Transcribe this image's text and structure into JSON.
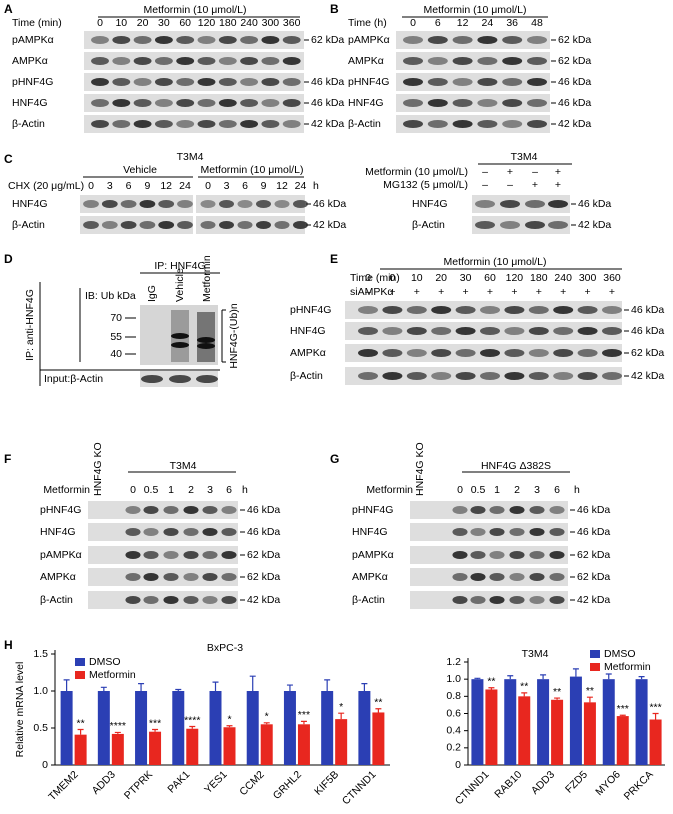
{
  "A": {
    "letter": "A",
    "treatment": "Metformin (10 μmol/L)",
    "lane_title": "Time (min)",
    "lanes": [
      "0",
      "10",
      "20",
      "30",
      "60",
      "120",
      "180",
      "240",
      "300",
      "360"
    ],
    "rows": [
      {
        "label": "pAMPKα",
        "size": "62 kDa"
      },
      {
        "label": "AMPKα"
      },
      {
        "label": "pHNF4G",
        "size": "46 kDa"
      },
      {
        "label": "HNF4G",
        "size": "46 kDa"
      },
      {
        "label": "β-Actin",
        "size": "42 kDa"
      }
    ]
  },
  "B": {
    "letter": "B",
    "treatment": "Metformin (10 μmol/L)",
    "lane_title": "Time (h)",
    "lanes": [
      "0",
      "6",
      "12",
      "24",
      "36",
      "48"
    ],
    "rows": [
      {
        "label": "pAMPKα",
        "size": "62 kDa"
      },
      {
        "label": "AMPKα",
        "size": "62 kDa"
      },
      {
        "label": "pHNF4G",
        "size": "46 kDa"
      },
      {
        "label": "HNF4G",
        "size": "46 kDa"
      },
      {
        "label": "β-Actin",
        "size": "42 kDa"
      }
    ]
  },
  "C": {
    "letter": "C",
    "cell_line": "T3M4",
    "groups": [
      "Vehicle",
      "Metformin (10 μmol/L)"
    ],
    "lane_title": "CHX (20 μg/mL)",
    "lanes": [
      "0",
      "3",
      "6",
      "9",
      "12",
      "24"
    ],
    "unit": "h",
    "rows": [
      {
        "label": "HNF4G",
        "size": "46 kDa"
      },
      {
        "label": "β-Actin",
        "size": "42 kDa"
      }
    ]
  },
  "C2": {
    "cell_line": "T3M4",
    "conditions": [
      {
        "label": "Metformin (10 μmol/L)",
        "signs": [
          "–",
          "+",
          "–",
          "+"
        ]
      },
      {
        "label": "MG132 (5 μmol/L)",
        "signs": [
          "–",
          "–",
          "+",
          "+"
        ]
      }
    ],
    "rows": [
      {
        "label": "HNF4G",
        "size": "46 kDa"
      },
      {
        "label": "β-Actin",
        "size": "42 kDa"
      }
    ]
  },
  "D": {
    "letter": "D",
    "ip": "IP: HNF4G",
    "lanes": [
      "IgG",
      "Vehicle",
      "Metformin"
    ],
    "side_label": "IP: anti-HNF4G",
    "ib": "IB: Ub kDa",
    "markers": [
      "70",
      "55",
      "40"
    ],
    "bracket": "HNF4G-(Ub)n",
    "input": "Input:β-Actin"
  },
  "E": {
    "letter": "E",
    "treatment": "Metformin (10 μmol/L)",
    "lane_title": "Time (min)",
    "lanes": [
      "0",
      "0",
      "10",
      "20",
      "30",
      "60",
      "120",
      "180",
      "240",
      "300",
      "360"
    ],
    "sirna": {
      "label": "siAMPKα",
      "signs": [
        "–",
        "+",
        "+",
        "+",
        "+",
        "+",
        "+",
        "+",
        "+",
        "+",
        "+"
      ]
    },
    "rows": [
      {
        "label": "pHNF4G",
        "size": "46 kDa"
      },
      {
        "label": "HNF4G",
        "size": "46 kDa"
      },
      {
        "label": "AMPKα",
        "size": "62 kDa"
      },
      {
        "label": "β-Actin",
        "size": "42 kDa"
      }
    ]
  },
  "F": {
    "letter": "F",
    "cell_line": "T3M4",
    "ko": "HNF4G KO",
    "treatment": "Metformin",
    "lanes": [
      "0",
      "0.5",
      "1",
      "2",
      "3",
      "6"
    ],
    "unit": "h",
    "rows": [
      {
        "label": "pHNF4G",
        "size": "46 kDa"
      },
      {
        "label": "HNF4G",
        "size": "46 kDa"
      },
      {
        "label": "pAMPKα",
        "size": "62 kDa"
      },
      {
        "label": "AMPKα",
        "size": "62 kDa"
      },
      {
        "label": "β-Actin",
        "size": "42 kDa"
      }
    ]
  },
  "G": {
    "letter": "G",
    "cell_line": "HNF4G Δ382S",
    "ko": "HNF4G KO",
    "treatment": "Metformin",
    "lanes": [
      "0",
      "0.5",
      "1",
      "2",
      "3",
      "6"
    ],
    "unit": "h",
    "rows": [
      {
        "label": "pHNF4G",
        "size": "46 kDa"
      },
      {
        "label": "HNF4G",
        "size": "46 kDa"
      },
      {
        "label": "pAMPKα",
        "size": "62 kDa"
      },
      {
        "label": "AMPKα",
        "size": "62 kDa"
      },
      {
        "label": "β-Actin",
        "size": "42 kDa"
      }
    ]
  },
  "H": {
    "letter": "H"
  },
  "chart_data": [
    {
      "type": "bar",
      "title": "BxPC-3",
      "y_label": "Relative mRNA level",
      "categories": [
        "TMEM2",
        "ADD3",
        "PTPRK",
        "PAK1",
        "YES1",
        "CCM2",
        "GRHL2",
        "KIF5B",
        "CTNND1"
      ],
      "series": [
        {
          "name": "DMSO",
          "color": "#2b3fb4",
          "values": [
            1,
            1,
            1,
            1,
            1,
            1,
            1,
            1,
            1
          ],
          "errors": [
            0.15,
            0.05,
            0.1,
            0.02,
            0.12,
            0.2,
            0.08,
            0.15,
            0.1
          ]
        },
        {
          "name": "Metformin",
          "color": "#e8271f",
          "values": [
            0.41,
            0.42,
            0.45,
            0.49,
            0.51,
            0.55,
            0.55,
            0.62,
            0.71
          ],
          "errors": [
            0.07,
            0.02,
            0.03,
            0.03,
            0.02,
            0.02,
            0.04,
            0.08,
            0.05
          ],
          "significance": [
            "**",
            "****",
            "***",
            "****",
            "*",
            "*",
            "***",
            "*",
            "**"
          ]
        }
      ],
      "ylim": [
        0,
        1.5
      ],
      "yticks": [
        0,
        0.5,
        {
          "value": 1,
          "label": "1.0"
        },
        1.5
      ],
      "legend": "upper left"
    },
    {
      "type": "bar",
      "title": "T3M4",
      "categories": [
        "CTNND1",
        "RAB10",
        "ADD3",
        "FZD5",
        "MYO6",
        "PRKCA"
      ],
      "series": [
        {
          "name": "DMSO",
          "color": "#2b3fb4",
          "values": [
            1,
            1,
            1,
            1.03,
            1,
            1
          ],
          "errors": [
            0.01,
            0.04,
            0.05,
            0.09,
            0.06,
            0.03
          ]
        },
        {
          "name": "Metformin",
          "color": "#e8271f",
          "values": [
            0.88,
            0.8,
            0.76,
            0.73,
            0.57,
            0.53
          ],
          "errors": [
            0.02,
            0.04,
            0.02,
            0.06,
            0.01,
            0.07
          ],
          "significance": [
            "**",
            "**",
            "**",
            "**",
            "***",
            "***"
          ]
        }
      ],
      "ylim": [
        0,
        1.2
      ],
      "yticks": [
        0,
        0.2,
        0.4,
        0.6,
        0.8,
        {
          "value": 1,
          "label": "1.0"
        },
        1.2
      ],
      "legend": "upper right"
    }
  ]
}
